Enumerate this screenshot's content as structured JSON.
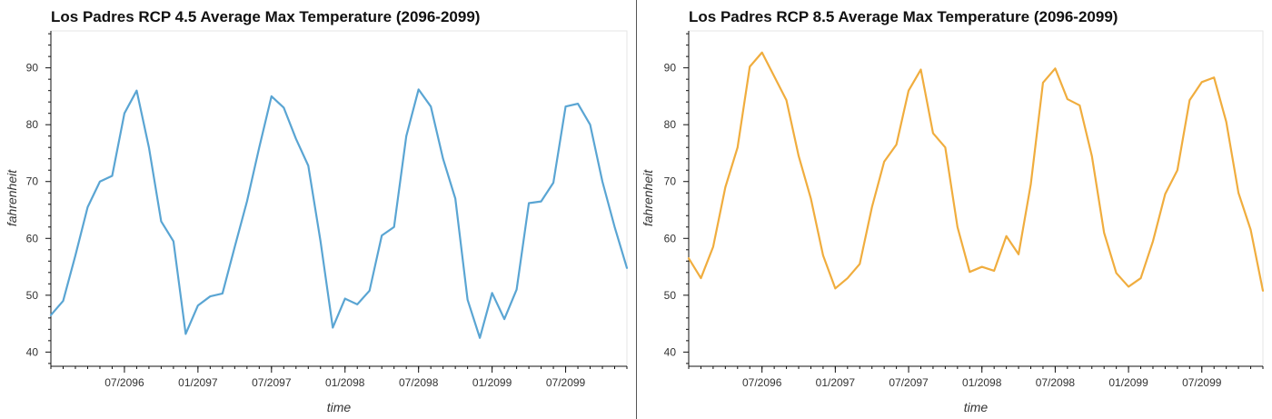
{
  "chart_data": [
    {
      "type": "line",
      "title": "Los Padres RCP 4.5 Average Max Temperature (2096-2099)",
      "xlabel": "time",
      "ylabel": "fahrenheit",
      "color": "#5aa5d3",
      "ylim": [
        37.5,
        96.5
      ],
      "xlim": [
        "2096-01",
        "2099-12"
      ],
      "x_ticks": [
        "07/2096",
        "01/2097",
        "07/2097",
        "01/2098",
        "07/2098",
        "01/2099",
        "07/2099"
      ],
      "y_ticks": [
        40,
        50,
        60,
        70,
        80,
        90
      ],
      "x": [
        "2096-01",
        "2096-02",
        "2096-03",
        "2096-04",
        "2096-05",
        "2096-06",
        "2096-07",
        "2096-08",
        "2096-09",
        "2096-10",
        "2096-11",
        "2096-12",
        "2097-01",
        "2097-02",
        "2097-03",
        "2097-04",
        "2097-05",
        "2097-06",
        "2097-07",
        "2097-08",
        "2097-09",
        "2097-10",
        "2097-11",
        "2097-12",
        "2098-01",
        "2098-02",
        "2098-03",
        "2098-04",
        "2098-05",
        "2098-06",
        "2098-07",
        "2098-08",
        "2098-09",
        "2098-10",
        "2098-11",
        "2098-12",
        "2099-01",
        "2099-02",
        "2099-03",
        "2099-04",
        "2099-05",
        "2099-06",
        "2099-07",
        "2099-08",
        "2099-09",
        "2099-10",
        "2099-11",
        "2099-12"
      ],
      "series": [
        {
          "values": [
            46.5,
            49,
            57,
            65.5,
            70,
            71,
            82,
            86,
            76,
            63,
            59.5,
            43.2,
            48.2,
            49.8,
            50.3,
            58.5,
            66.5,
            76,
            85,
            83,
            77.5,
            72.8,
            59.5,
            44.3,
            49.4,
            48.4,
            50.8,
            60.5,
            62,
            78,
            86.2,
            83.2,
            74,
            67,
            49.2,
            42.5,
            50.4,
            45.8,
            51,
            66.2,
            66.5,
            69.8,
            83.2,
            83.7,
            80,
            70,
            62,
            54.8
          ]
        }
      ]
    },
    {
      "type": "line",
      "title": "Los Padres RCP 8.5 Average Max Temperature (2096-2099)",
      "xlabel": "time",
      "ylabel": "fahrenheit",
      "color": "#f0ad3e",
      "ylim": [
        37.5,
        96.5
      ],
      "xlim": [
        "2096-01",
        "2099-12"
      ],
      "x_ticks": [
        "07/2096",
        "01/2097",
        "07/2097",
        "01/2098",
        "07/2098",
        "01/2099",
        "07/2099"
      ],
      "y_ticks": [
        40,
        50,
        60,
        70,
        80,
        90
      ],
      "x": [
        "2096-01",
        "2096-02",
        "2096-03",
        "2096-04",
        "2096-05",
        "2096-06",
        "2096-07",
        "2096-08",
        "2096-09",
        "2096-10",
        "2096-11",
        "2096-12",
        "2097-01",
        "2097-02",
        "2097-03",
        "2097-04",
        "2097-05",
        "2097-06",
        "2097-07",
        "2097-08",
        "2097-09",
        "2097-10",
        "2097-11",
        "2097-12",
        "2098-01",
        "2098-02",
        "2098-03",
        "2098-04",
        "2098-05",
        "2098-06",
        "2098-07",
        "2098-08",
        "2098-09",
        "2098-10",
        "2098-11",
        "2098-12",
        "2099-01",
        "2099-02",
        "2099-03",
        "2099-04",
        "2099-05",
        "2099-06",
        "2099-07",
        "2099-08",
        "2099-09",
        "2099-10",
        "2099-11",
        "2099-12"
      ],
      "series": [
        {
          "values": [
            56.5,
            53,
            58.5,
            69,
            76,
            90.2,
            92.7,
            88.5,
            84.3,
            74.5,
            67,
            57,
            51.2,
            53,
            55.5,
            65.5,
            73.5,
            76.5,
            86,
            89.7,
            78.5,
            76,
            62,
            54.1,
            55,
            54.3,
            60.4,
            57.2,
            69.5,
            87.4,
            89.9,
            84.5,
            83.4,
            74.5,
            61,
            53.9,
            51.5,
            53,
            59.5,
            67.8,
            72,
            84.3,
            87.5,
            88.3,
            80.5,
            68,
            61.5,
            50.8
          ]
        }
      ]
    }
  ]
}
